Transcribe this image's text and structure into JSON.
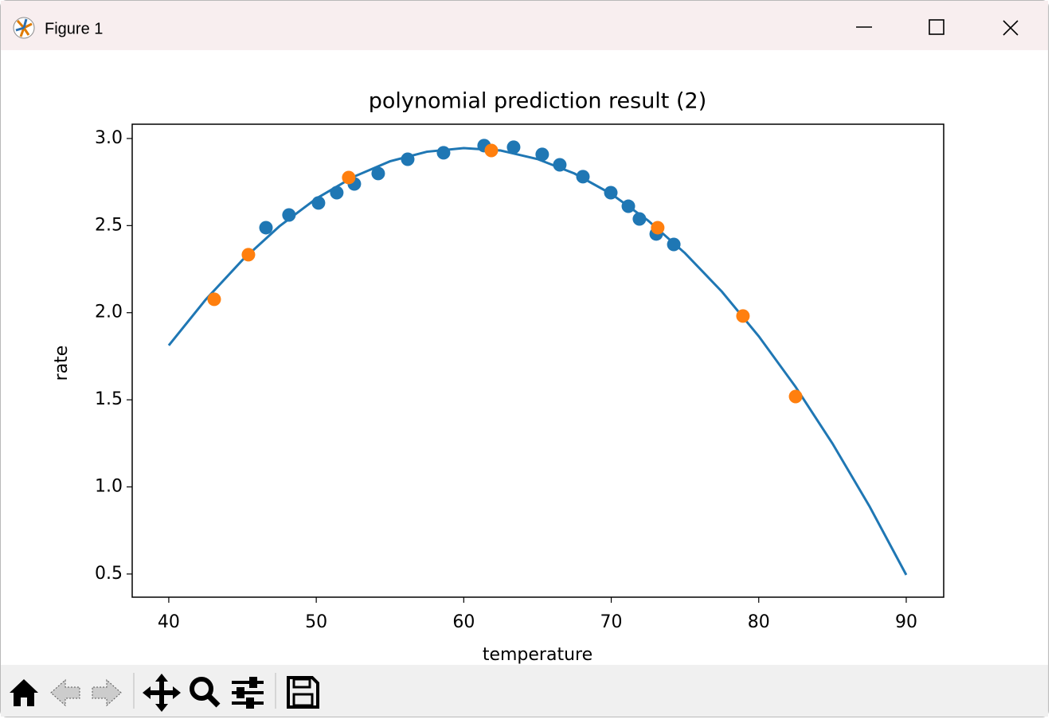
{
  "window": {
    "title": "Figure 1"
  },
  "chart_data": {
    "type": "scatter",
    "title": "polynomial prediction result (2)",
    "x_label": "temperature",
    "y_label": "rate",
    "xlim": [
      37.52,
      92.54
    ],
    "ylim": [
      0.367,
      3.082
    ],
    "xticks": [
      40,
      50,
      60,
      70,
      80,
      90
    ],
    "yticks": [
      0.5,
      {
        "value": 1,
        "label": "1.0"
      },
      1.5,
      {
        "value": 2,
        "label": "2.0"
      },
      2.5,
      {
        "value": 3,
        "label": "3.0"
      }
    ],
    "grid": false,
    "series": [
      {
        "type": "line",
        "color": "#1f77b4",
        "x": [
          40,
          42.5,
          45,
          47.5,
          50,
          52.5,
          55,
          57.5,
          60,
          62.5,
          65,
          67.5,
          70,
          72.5,
          75,
          77.5,
          80,
          82.5,
          85,
          87.5,
          90
        ],
        "values": [
          1.812,
          2.075,
          2.303,
          2.496,
          2.655,
          2.779,
          2.869,
          2.924,
          2.945,
          2.931,
          2.882,
          2.799,
          2.682,
          2.529,
          2.342,
          2.121,
          1.865,
          1.574,
          1.249,
          0.89,
          0.495
        ]
      },
      {
        "type": "scatter",
        "color": "#1f77b4",
        "x": [
          46.59,
          48.15,
          50.15,
          51.39,
          52.58,
          54.2,
          56.2,
          58.63,
          61.38,
          63.38,
          65.32,
          66.51,
          68.08,
          69.97,
          71.16,
          71.91,
          73.05,
          74.24
        ],
        "values": [
          2.488,
          2.561,
          2.63,
          2.689,
          2.739,
          2.799,
          2.881,
          2.918,
          2.959,
          2.95,
          2.909,
          2.849,
          2.781,
          2.689,
          2.611,
          2.538,
          2.452,
          2.392
        ]
      },
      {
        "type": "scatter",
        "color": "#ff7f0e",
        "x": [
          43.08,
          45.4,
          52.2,
          61.87,
          73.15,
          78.93,
          82.5
        ],
        "values": [
          2.077,
          2.333,
          2.776,
          2.931,
          2.488,
          1.981,
          1.519
        ]
      }
    ]
  }
}
